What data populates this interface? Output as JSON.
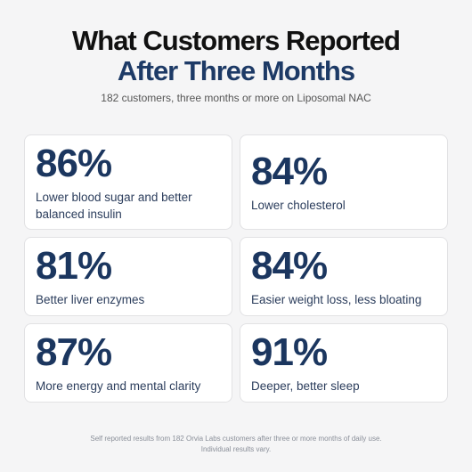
{
  "header": {
    "title_line1": "What Customers Reported",
    "title_line2": "After Three Months",
    "subtitle": "182 customers, three months or more on Liposomal NAC"
  },
  "cards": [
    {
      "stat": "86%",
      "label": "Lower blood sugar and better balanced insulin"
    },
    {
      "stat": "84%",
      "label": "Lower cholesterol"
    },
    {
      "stat": "81%",
      "label": "Better liver enzymes"
    },
    {
      "stat": "84%",
      "label": "Easier weight loss, less bloating"
    },
    {
      "stat": "87%",
      "label": "More energy and mental clarity"
    },
    {
      "stat": "91%",
      "label": "Deeper, better sleep"
    }
  ],
  "footer": {
    "line1": "Self reported results from 182 Orvia Labs customers after three or more months of daily use.",
    "line2": "Individual results vary."
  }
}
